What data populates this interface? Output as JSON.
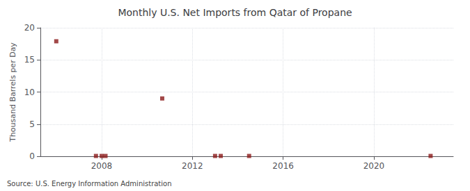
{
  "chart_data": {
    "type": "scatter",
    "title": "Monthly U.S. Net Imports from Qatar of Propane",
    "ylabel": "Thousand Barrels per Day",
    "annotations": [
      "Source: U.S. Energy Information Administration"
    ],
    "x": [
      2006.0,
      2007.75,
      2008.0,
      2008.17,
      2010.67,
      2013.0,
      2013.25,
      2014.5,
      2022.5
    ],
    "values": [
      17.9,
      0.05,
      0.05,
      0.05,
      9.0,
      0.05,
      0.05,
      0.05,
      0.05
    ],
    "color": "#8b1a1a",
    "marker": "square",
    "xlim": [
      2005.3,
      2023.5
    ],
    "ylim": [
      0,
      20
    ],
    "xticks": [
      2008,
      2012,
      2016,
      2020
    ],
    "yticks": [
      0,
      5,
      10,
      15,
      20
    ],
    "grid": true
  }
}
